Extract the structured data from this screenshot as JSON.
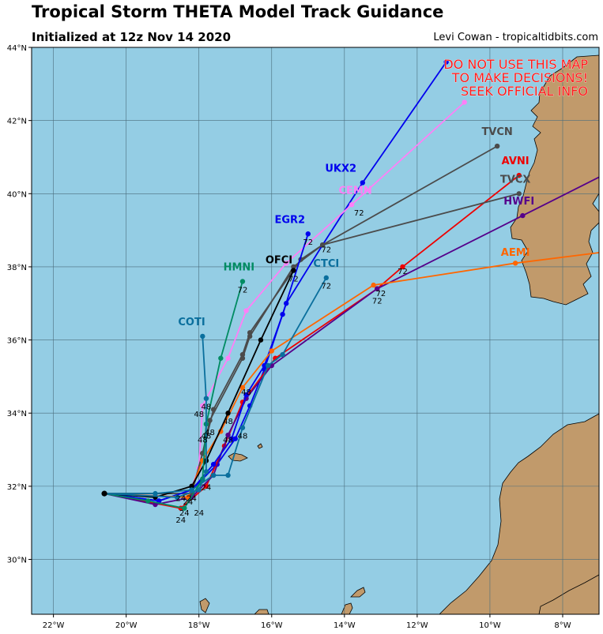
{
  "title": "Tropical Storm THETA Model Track Guidance",
  "subtitle": "Initialized at 12z Nov 14 2020",
  "credit": "Levi Cowan - tropicaltidbits.com",
  "warning": [
    "DO NOT USE THIS MAP",
    "TO MAKE DECISIONS!",
    "SEEK OFFICIAL INFO"
  ],
  "colors": {
    "ocean": "#94cde4",
    "land": "#c19a6b",
    "grid": "#4a6d7c",
    "warning": "#ff1a1a"
  },
  "map_extent": {
    "lon": [
      -22.6,
      -7.0
    ],
    "lat": [
      28.5,
      44.0
    ]
  },
  "lon_ticks": [
    {
      "v": -22,
      "label": "22°W"
    },
    {
      "v": -20,
      "label": "20°W"
    },
    {
      "v": -18,
      "label": "18°W"
    },
    {
      "v": -16,
      "label": "16°W"
    },
    {
      "v": -14,
      "label": "14°W"
    },
    {
      "v": -12,
      "label": "12°W"
    },
    {
      "v": -10,
      "label": "10°W"
    },
    {
      "v": -8,
      "label": "8°W"
    }
  ],
  "lat_ticks": [
    {
      "v": 30,
      "label": "30°N"
    },
    {
      "v": 32,
      "label": "32°N"
    },
    {
      "v": 34,
      "label": "34°N"
    },
    {
      "v": 36,
      "label": "36°N"
    },
    {
      "v": 38,
      "label": "38°N"
    },
    {
      "v": 40,
      "label": "40°N"
    },
    {
      "v": 42,
      "label": "42°N"
    },
    {
      "v": 44,
      "label": "44°N"
    }
  ],
  "chart_data": {
    "type": "map-tracks",
    "models": [
      {
        "name": "UKX2",
        "color": "#0000ee",
        "track": [
          [
            -20.6,
            31.8
          ],
          [
            -19.1,
            31.6
          ],
          [
            -18.2,
            31.9
          ],
          [
            -17.5,
            32.6
          ],
          [
            -17.0,
            33.3
          ],
          [
            -16.6,
            34.2
          ],
          [
            -16.2,
            35.2
          ],
          [
            -15.6,
            37.0
          ],
          [
            -14.6,
            38.6
          ],
          [
            -13.5,
            40.3
          ],
          [
            -11.2,
            43.6
          ]
        ],
        "label_pos": [
          -14.1,
          40.6
        ],
        "hour_labels": []
      },
      {
        "name": "CEMN",
        "color": "#ff7ff7",
        "track": [
          [
            -20.6,
            31.8
          ],
          [
            -18.3,
            31.7
          ],
          [
            -18.0,
            32.5
          ],
          [
            -17.9,
            34.2
          ],
          [
            -17.2,
            35.5
          ],
          [
            -16.7,
            36.8
          ],
          [
            -15.6,
            38.1
          ],
          [
            -13.8,
            39.7
          ],
          [
            -10.7,
            42.5
          ]
        ],
        "label_pos": [
          -13.7,
          40.0
        ],
        "hour_labels": [
          [
            [
              "-13.6",
              "39.4"
            ],
            "72"
          ],
          [
            [
              "-18.0",
              "33.9"
            ],
            "48"
          ]
        ]
      },
      {
        "name": "TVCN",
        "color": "#4b4b4b",
        "track": [
          [
            -20.6,
            31.8
          ],
          [
            -18.2,
            31.8
          ],
          [
            -17.9,
            32.9
          ],
          [
            -17.6,
            34.1
          ],
          [
            -16.8,
            35.6
          ],
          [
            -16.6,
            36.2
          ],
          [
            -15.2,
            38.2
          ],
          [
            -14.6,
            38.6
          ],
          [
            -9.8,
            41.3
          ]
        ],
        "label_pos": [
          -9.8,
          41.6
        ],
        "hour_labels": [
          [
            [
              "-14.5",
              "38.4"
            ],
            "72"
          ]
        ]
      },
      {
        "name": "AVNI",
        "color": "#ee0000",
        "track": [
          [
            -20.6,
            31.8
          ],
          [
            -18.5,
            31.4
          ],
          [
            -17.8,
            32.0
          ],
          [
            -17.3,
            33.1
          ],
          [
            -16.8,
            34.3
          ],
          [
            -15.9,
            35.5
          ],
          [
            -13.1,
            37.4
          ],
          [
            -12.4,
            38.0
          ],
          [
            -9.2,
            40.5
          ]
        ],
        "label_pos": [
          -9.3,
          40.8
        ],
        "hour_labels": [
          [
            [
              "-12.4",
              "37.8"
            ],
            "72"
          ]
        ]
      },
      {
        "name": "TVCX",
        "color": "#4b4b4b",
        "track": [
          [
            -20.6,
            31.8
          ],
          [
            -18.2,
            31.8
          ],
          [
            -17.9,
            32.9
          ],
          [
            -17.7,
            33.8
          ],
          [
            -16.8,
            35.5
          ],
          [
            -16.6,
            36.1
          ],
          [
            -15.4,
            38.0
          ],
          [
            -14.6,
            38.6
          ],
          [
            -9.2,
            40.0
          ]
        ],
        "label_pos": [
          -9.3,
          40.3
        ],
        "hour_labels": []
      },
      {
        "name": "HWFI",
        "color": "#55008b",
        "track": [
          [
            -20.6,
            31.8
          ],
          [
            -19.2,
            31.5
          ],
          [
            -18.2,
            31.7
          ],
          [
            -17.6,
            32.3
          ],
          [
            -17.2,
            33.4
          ],
          [
            -16.7,
            34.4
          ],
          [
            -16.0,
            35.3
          ],
          [
            -13.1,
            37.4
          ],
          [
            -9.1,
            39.4
          ],
          [
            -6.9,
            40.5
          ]
        ],
        "label_pos": [
          -9.2,
          39.7
        ],
        "hour_labels": [
          [
            [
              "-13.0",
              "37.2"
            ],
            "72"
          ]
        ]
      },
      {
        "name": "EGR2",
        "color": "#0000ee",
        "track": [
          [
            -20.6,
            31.8
          ],
          [
            -19.1,
            31.6
          ],
          [
            -18.2,
            31.9
          ],
          [
            -17.6,
            32.6
          ],
          [
            -17.1,
            33.3
          ],
          [
            -16.7,
            34.5
          ],
          [
            -16.2,
            35.3
          ],
          [
            -15.7,
            36.7
          ],
          [
            -15.0,
            38.9
          ]
        ],
        "label_pos": [
          -15.5,
          39.2
        ],
        "hour_labels": [
          [
            [
              "-15.0",
              "38.6"
            ],
            "72"
          ],
          [
            [
              "-16.7",
              "34.5"
            ],
            "48"
          ]
        ]
      },
      {
        "name": "AEMI",
        "color": "#ff6600",
        "track": [
          [
            -20.6,
            31.8
          ],
          [
            -18.3,
            31.7
          ],
          [
            -17.9,
            32.7
          ],
          [
            -17.4,
            33.5
          ],
          [
            -16.8,
            34.7
          ],
          [
            -16.0,
            35.7
          ],
          [
            -13.2,
            37.5
          ],
          [
            -9.3,
            38.1
          ],
          [
            -6.9,
            38.4
          ]
        ],
        "label_pos": [
          -9.3,
          38.3
        ],
        "hour_labels": [
          [
            [
              "-13.1",
              "37.0"
            ],
            "72"
          ]
        ]
      },
      {
        "name": "OFCI",
        "color": "#000000",
        "track": [
          [
            -20.6,
            31.8
          ],
          [
            -19.2,
            31.7
          ],
          [
            -18.2,
            32.0
          ],
          [
            -17.8,
            32.7
          ],
          [
            -17.2,
            34.0
          ],
          [
            -16.3,
            36.0
          ],
          [
            -15.4,
            37.9
          ]
        ],
        "label_pos": [
          -15.8,
          38.1
        ],
        "hour_labels": [
          [
            [
              "-15.4",
              "37.6"
            ],
            "72"
          ],
          [
            [
              "-17.2",
              "33.7"
            ],
            "48"
          ]
        ]
      },
      {
        "name": "CTCI",
        "color": "#0a6f9d",
        "track": [
          [
            -20.6,
            31.8
          ],
          [
            -19.2,
            31.8
          ],
          [
            -18.2,
            31.9
          ],
          [
            -17.6,
            32.3
          ],
          [
            -17.2,
            32.3
          ],
          [
            -16.8,
            33.6
          ],
          [
            -16.1,
            35.3
          ],
          [
            -15.7,
            35.6
          ],
          [
            -14.5,
            37.7
          ]
        ],
        "label_pos": [
          -14.5,
          38.0
        ],
        "hour_labels": [
          [
            [
              "-14.5",
              "37.4"
            ],
            "72"
          ],
          [
            [
              "-16.8",
              "33.3"
            ],
            "48"
          ]
        ]
      },
      {
        "name": "HMNI",
        "color": "#008b62",
        "track": [
          [
            -20.6,
            31.8
          ],
          [
            -19.4,
            31.6
          ],
          [
            -18.4,
            31.4
          ],
          [
            -17.9,
            32.2
          ],
          [
            -17.8,
            33.7
          ],
          [
            -17.4,
            35.5
          ],
          [
            -16.8,
            37.6
          ]
        ],
        "label_pos": [
          -16.9,
          37.9
        ],
        "hour_labels": [
          [
            [
              "-16.8",
              "37.3"
            ],
            "72"
          ],
          [
            [
              "-17.7",
              "33.4"
            ],
            "48"
          ]
        ]
      },
      {
        "name": "COTI",
        "color": "#0a6f9d",
        "track": [
          [
            -20.6,
            31.8
          ],
          [
            -18.6,
            31.7
          ],
          [
            -18.0,
            31.9
          ],
          [
            -17.8,
            32.4
          ],
          [
            -17.8,
            34.4
          ],
          [
            -17.9,
            36.1
          ]
        ],
        "label_pos": [
          -18.2,
          36.4
        ],
        "hour_labels": [
          [
            [
              "-17.8",
              "34.1"
            ],
            "48"
          ]
        ]
      }
    ],
    "extra_hour_labels": [
      [
        [
          "-18.4",
          "31.2"
        ],
        "24"
      ],
      [
        [
          "-18.0",
          "31.2"
        ],
        "24"
      ],
      [
        [
          "-18.5",
          "31.0"
        ],
        "24"
      ],
      [
        [
          "-18.3",
          "31.5"
        ],
        "24"
      ],
      [
        [
          "-17.8",
          "31.9"
        ],
        "24"
      ],
      [
        [
          "-18.5",
          "31.6"
        ],
        "24"
      ],
      [
        [
          "-18.2",
          "31.6"
        ],
        "24"
      ],
      [
        [
          "-17.8",
          "33.3"
        ],
        "48"
      ],
      [
        [
          "-17.9",
          "33.2"
        ],
        "48"
      ],
      [
        [
          "-17.2",
          "33.2"
        ],
        "48"
      ]
    ]
  }
}
